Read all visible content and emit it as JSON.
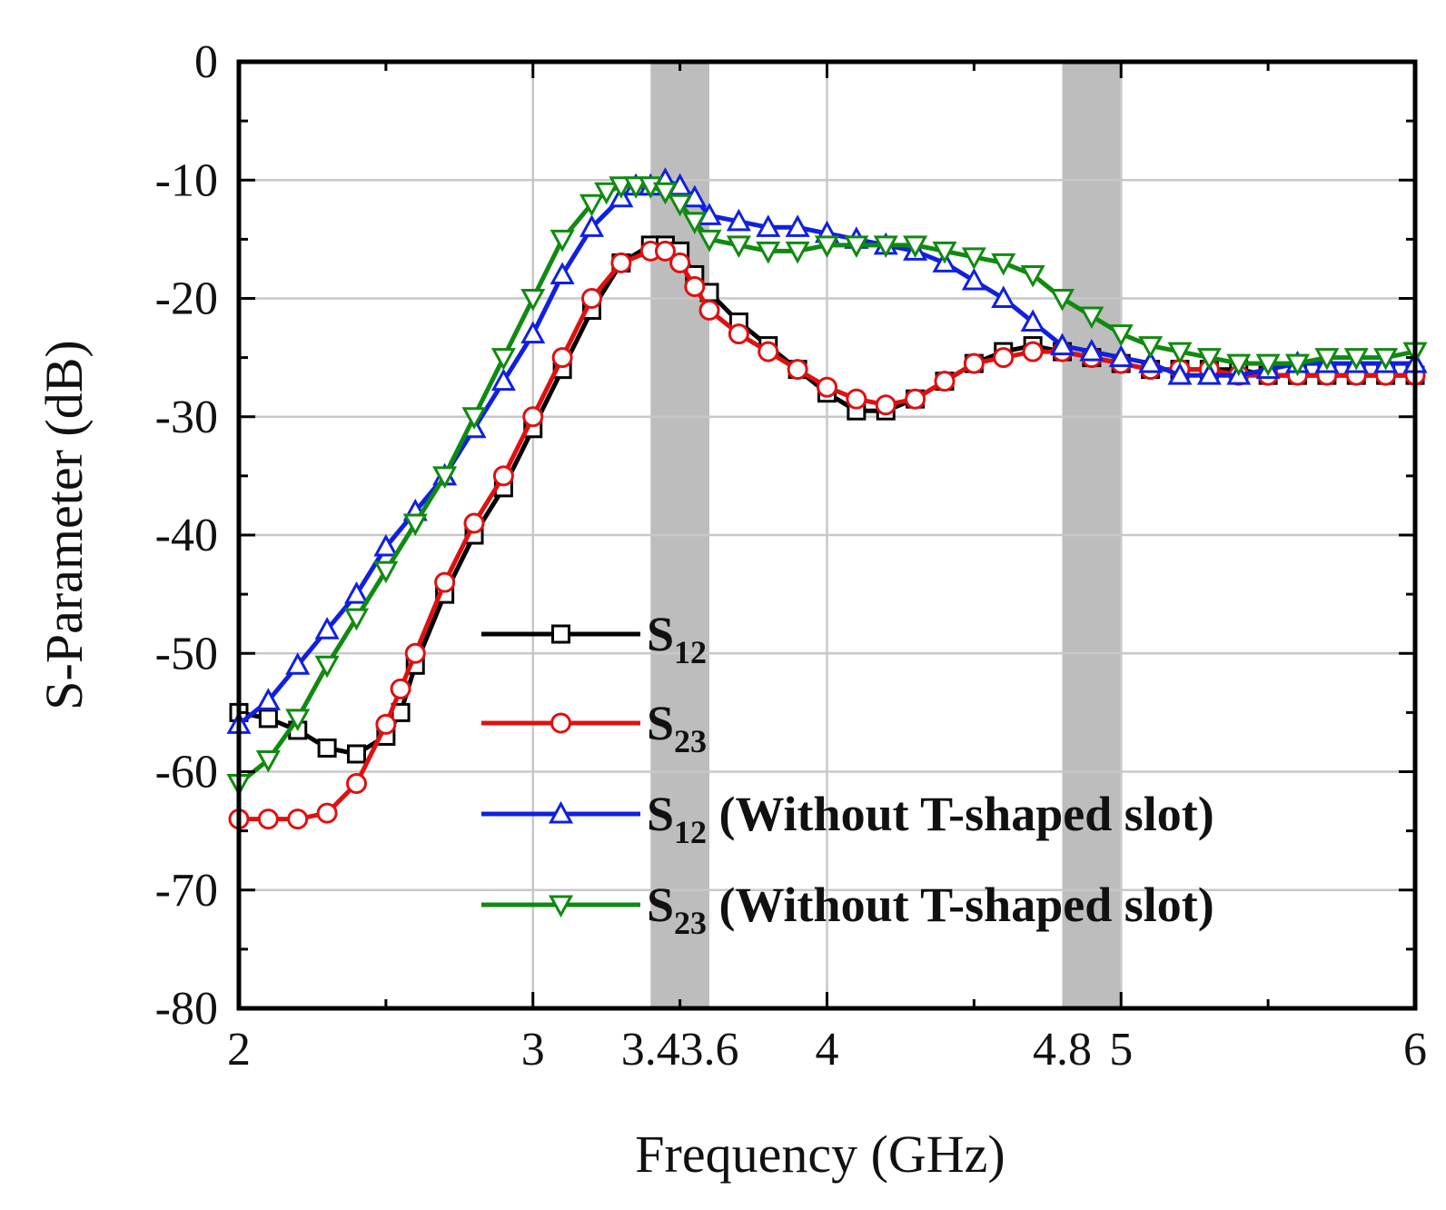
{
  "chart_data": {
    "type": "line",
    "xlabel": "Frequency (GHz)",
    "ylabel": "S-Parameter (dB)",
    "xlim": [
      2,
      6
    ],
    "ylim": [
      -80,
      0
    ],
    "xticks": [
      2,
      3,
      3.4,
      3.6,
      4,
      4.8,
      5,
      6
    ],
    "xtick_labels": [
      "2",
      "3",
      "3.4",
      "3.6",
      "4",
      "4.8",
      "5",
      "6"
    ],
    "yticks": [
      0,
      -10,
      -20,
      -30,
      -40,
      -50,
      -60,
      -70,
      -80
    ],
    "ytick_labels": [
      "0",
      "-10",
      "-20",
      "-30",
      "-40",
      "-50",
      "-60",
      "-70",
      "-80"
    ],
    "grid": true,
    "shaded_bands": [
      {
        "x0": 3.4,
        "x1": 3.6
      },
      {
        "x0": 4.8,
        "x1": 5.0
      }
    ],
    "legend": {
      "placement": "lower-center"
    },
    "series": [
      {
        "name": "S12",
        "label_main": "S",
        "label_sub": "12",
        "label_suffix": "",
        "color": "#000000",
        "marker": "square",
        "x": [
          2.0,
          2.1,
          2.2,
          2.3,
          2.4,
          2.5,
          2.55,
          2.6,
          2.7,
          2.8,
          2.9,
          3.0,
          3.1,
          3.2,
          3.3,
          3.4,
          3.45,
          3.5,
          3.55,
          3.6,
          3.7,
          3.8,
          3.9,
          4.0,
          4.1,
          4.2,
          4.3,
          4.4,
          4.5,
          4.6,
          4.7,
          4.8,
          4.9,
          5.0,
          5.1,
          5.2,
          5.3,
          5.4,
          5.5,
          5.6,
          5.7,
          5.8,
          5.9,
          6.0
        ],
        "y": [
          -55,
          -55.5,
          -56.5,
          -58,
          -58.5,
          -57,
          -55,
          -51,
          -45,
          -40,
          -36,
          -31,
          -26,
          -21,
          -17,
          -15.5,
          -15.5,
          -16,
          -18,
          -19.5,
          -22,
          -24,
          -26,
          -28,
          -29.5,
          -29.5,
          -28.5,
          -27,
          -25.5,
          -24.5,
          -24,
          -24.5,
          -25,
          -25.5,
          -26,
          -26,
          -26,
          -26,
          -26.5,
          -26.5,
          -26.5,
          -26.5,
          -26.5,
          -26.5
        ]
      },
      {
        "name": "S23",
        "label_main": "S",
        "label_sub": "23",
        "label_suffix": "",
        "color": "#e01010",
        "marker": "circle",
        "x": [
          2.0,
          2.1,
          2.2,
          2.3,
          2.4,
          2.5,
          2.55,
          2.6,
          2.7,
          2.8,
          2.9,
          3.0,
          3.1,
          3.2,
          3.3,
          3.4,
          3.45,
          3.5,
          3.55,
          3.6,
          3.7,
          3.8,
          3.9,
          4.0,
          4.1,
          4.2,
          4.3,
          4.4,
          4.5,
          4.6,
          4.7,
          4.8,
          4.9,
          5.0,
          5.1,
          5.2,
          5.3,
          5.4,
          5.5,
          5.6,
          5.7,
          5.8,
          5.9,
          6.0
        ],
        "y": [
          -64,
          -64,
          -64,
          -63.5,
          -61,
          -56,
          -53,
          -50,
          -44,
          -39,
          -35,
          -30,
          -25,
          -20,
          -17,
          -16,
          -16,
          -17,
          -19,
          -21,
          -23,
          -24.5,
          -26,
          -27.5,
          -28.5,
          -29,
          -28.5,
          -27,
          -25.5,
          -25,
          -24.5,
          -24.5,
          -25,
          -25.5,
          -26,
          -26,
          -26,
          -26.5,
          -26.5,
          -26.5,
          -26.5,
          -26.5,
          -26.5,
          -26.5
        ]
      },
      {
        "name": "S12 (Without T-shaped slot)",
        "label_main": "S",
        "label_sub": "12",
        "label_suffix": " (Without T-shaped slot)",
        "color": "#1020e0",
        "marker": "triangle-up",
        "x": [
          2.0,
          2.1,
          2.2,
          2.3,
          2.4,
          2.5,
          2.6,
          2.7,
          2.8,
          2.9,
          3.0,
          3.1,
          3.2,
          3.3,
          3.35,
          3.4,
          3.45,
          3.5,
          3.55,
          3.6,
          3.7,
          3.8,
          3.9,
          4.0,
          4.1,
          4.2,
          4.3,
          4.4,
          4.5,
          4.6,
          4.7,
          4.8,
          4.9,
          5.0,
          5.1,
          5.2,
          5.3,
          5.4,
          5.5,
          5.6,
          5.7,
          5.8,
          5.9,
          6.0
        ],
        "y": [
          -56,
          -54,
          -51,
          -48,
          -45,
          -41,
          -38,
          -35,
          -31,
          -27,
          -23,
          -18,
          -14,
          -11.5,
          -10.5,
          -10.5,
          -10,
          -10.5,
          -11.5,
          -13,
          -13.5,
          -14,
          -14,
          -14.5,
          -15,
          -15.5,
          -16,
          -17,
          -18.5,
          -20,
          -22,
          -24,
          -24.5,
          -25,
          -25.5,
          -26.5,
          -26.5,
          -26.5,
          -26,
          -25.5,
          -25.5,
          -25.5,
          -25.5,
          -25.5
        ]
      },
      {
        "name": "S23 (Without T-shaped slot)",
        "label_main": "S",
        "label_sub": "23",
        "label_suffix": " (Without T-shaped slot)",
        "color": "#108a10",
        "marker": "triangle-down",
        "x": [
          2.0,
          2.1,
          2.2,
          2.3,
          2.4,
          2.5,
          2.6,
          2.7,
          2.8,
          2.9,
          3.0,
          3.1,
          3.2,
          3.25,
          3.3,
          3.35,
          3.4,
          3.45,
          3.5,
          3.55,
          3.6,
          3.7,
          3.8,
          3.9,
          4.0,
          4.1,
          4.2,
          4.3,
          4.4,
          4.5,
          4.6,
          4.7,
          4.8,
          4.9,
          5.0,
          5.1,
          5.2,
          5.3,
          5.4,
          5.5,
          5.6,
          5.7,
          5.8,
          5.9,
          6.0
        ],
        "y": [
          -61,
          -59,
          -55.5,
          -51,
          -47,
          -43,
          -39,
          -35,
          -30,
          -25,
          -20,
          -15,
          -12,
          -11,
          -10.5,
          -10.5,
          -10.5,
          -11,
          -12,
          -13.5,
          -15,
          -15.5,
          -16,
          -16,
          -15.5,
          -15.5,
          -15.5,
          -15.5,
          -16,
          -16.5,
          -17,
          -18,
          -20,
          -21.5,
          -23,
          -24,
          -24.5,
          -25,
          -25.5,
          -25.5,
          -25.5,
          -25,
          -25,
          -25,
          -24.5
        ]
      }
    ]
  }
}
